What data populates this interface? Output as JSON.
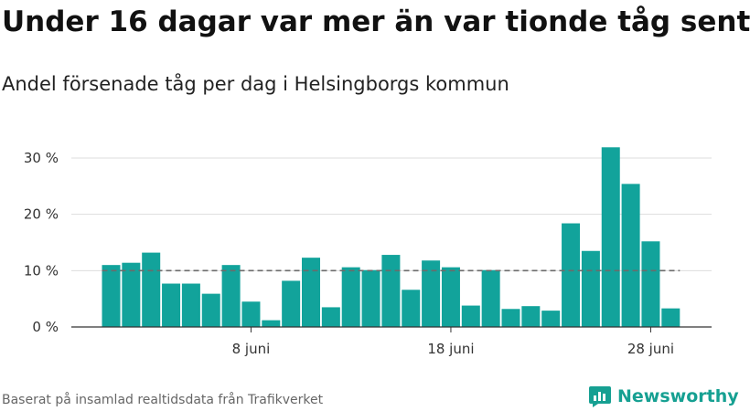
{
  "title": "Under 16 dagar var mer än var tionde tåg sent",
  "subtitle": "Andel försenade tåg per dag i Helsingborgs kommun",
  "source": "Baserat på insamlad realtidsdata från Trafikverket",
  "brand": "Newsworthy",
  "colors": {
    "bar": "#12a39b",
    "reference_line": "#6b6b6b",
    "grid": "#dddddd",
    "axis": "#333333",
    "brand": "#16a092"
  },
  "chart_data": {
    "type": "bar",
    "title": "Under 16 dagar var mer än var tionde tåg sent",
    "subtitle": "Andel försenade tåg per dag i Helsingborgs kommun",
    "xlabel": "",
    "ylabel": "",
    "x_unit": "day of June",
    "categories": [
      1,
      2,
      3,
      4,
      5,
      6,
      7,
      8,
      9,
      10,
      11,
      12,
      13,
      14,
      15,
      16,
      17,
      18,
      19,
      20,
      21,
      22,
      23,
      24,
      25,
      26,
      27,
      28,
      29
    ],
    "values": [
      11.0,
      11.4,
      13.2,
      7.7,
      7.7,
      5.9,
      11.0,
      4.5,
      1.2,
      8.2,
      12.3,
      3.5,
      10.6,
      10.1,
      12.8,
      6.6,
      11.8,
      10.6,
      3.8,
      10.1,
      3.2,
      3.7,
      2.9,
      18.4,
      13.5,
      31.9,
      25.4,
      15.2,
      3.3
    ],
    "reference_line": 10,
    "ylim": [
      0,
      33
    ],
    "yticks": [
      0,
      10,
      20,
      30
    ],
    "ytick_labels": [
      "0 %",
      "10 %",
      "20 %",
      "30 %"
    ],
    "xticks": [
      8,
      18,
      28
    ],
    "xtick_labels": [
      "8 juni",
      "18 juni",
      "28 juni"
    ],
    "grid": true,
    "legend": "none"
  }
}
